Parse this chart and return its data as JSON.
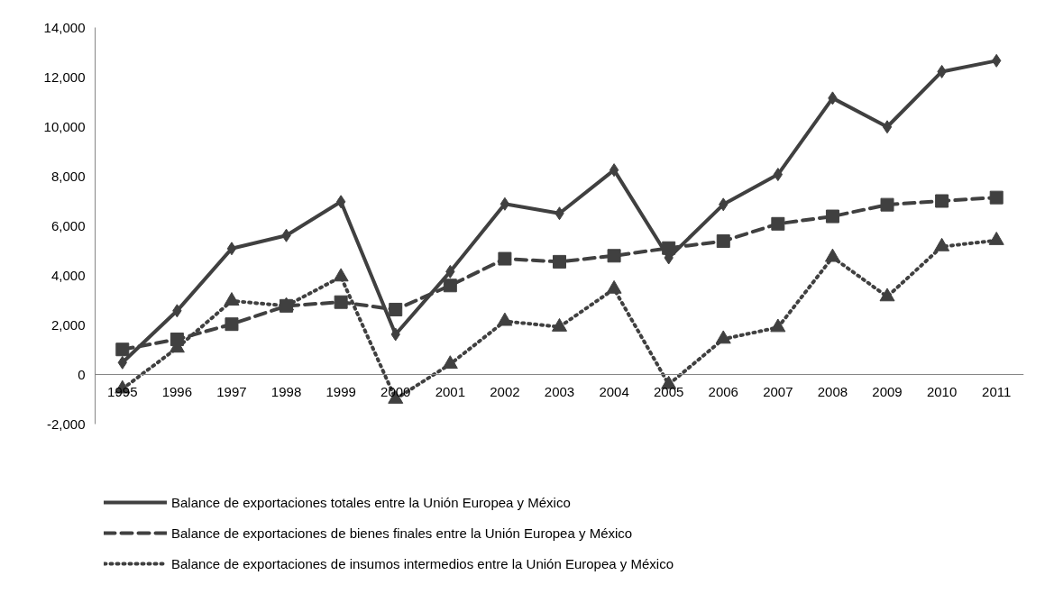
{
  "chart_data": {
    "type": "line",
    "categories": [
      "1995",
      "1996",
      "1997",
      "1998",
      "1999",
      "2000",
      "2001",
      "2002",
      "2003",
      "2004",
      "2005",
      "2006",
      "2007",
      "2008",
      "2009",
      "2010",
      "2011"
    ],
    "series": [
      {
        "name": "Balance de exportaciones totales entre la Unión Europea y México",
        "color": "#404040",
        "marker": "diamond",
        "line_style": "solid",
        "values": [
          480,
          2570,
          5080,
          5610,
          6970,
          1620,
          4150,
          6880,
          6500,
          8250,
          4710,
          6860,
          8070,
          11150,
          9990,
          12220,
          12660
        ]
      },
      {
        "name": "Balance de exportaciones de bienes finales entre la Unión Europea y México",
        "color": "#404040",
        "marker": "square",
        "line_style": "dashed",
        "values": [
          1010,
          1420,
          2030,
          2770,
          2920,
          2620,
          3590,
          4670,
          4550,
          4790,
          5100,
          5380,
          6080,
          6380,
          6850,
          7000,
          7140
        ]
      },
      {
        "name": "Balance de exportaciones de insumos intermedios entre la Unión Europea y México",
        "color": "#404040",
        "marker": "triangle",
        "line_style": "dotted",
        "values": [
          -580,
          1070,
          2970,
          2770,
          3940,
          -990,
          420,
          2150,
          1920,
          3450,
          -400,
          1430,
          1900,
          4730,
          3140,
          5160,
          5410
        ]
      }
    ],
    "ylim": [
      -2000,
      14000
    ],
    "yticks": [
      {
        "value": -2000,
        "label": "-2,000"
      },
      0,
      {
        "value": 2000,
        "label": "2,000"
      },
      {
        "value": 4000,
        "label": "4,000"
      },
      {
        "value": 6000,
        "label": "6,000"
      },
      {
        "value": 8000,
        "label": "8,000"
      },
      {
        "value": 10000,
        "label": "10,000"
      },
      {
        "value": 12000,
        "label": "12,000"
      },
      {
        "value": 14000,
        "label": "14,000"
      }
    ],
    "grid": false,
    "legend": "bottom"
  }
}
